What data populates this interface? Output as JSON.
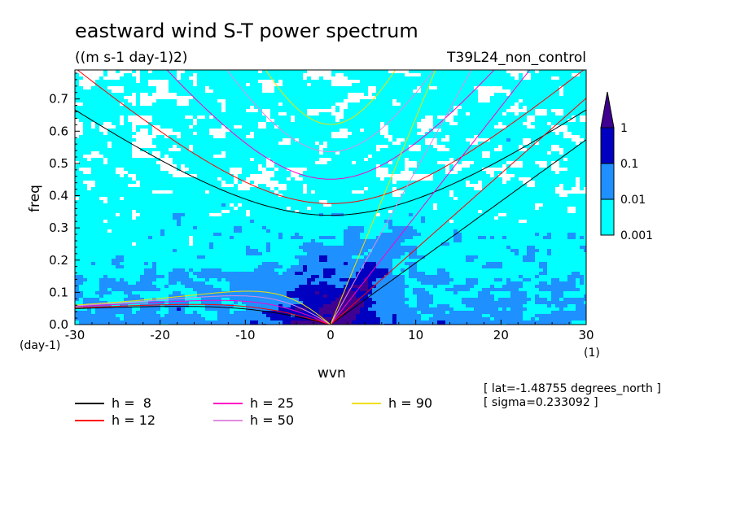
{
  "chart_data": {
    "type": "heatmap",
    "title": "eastward wind S-T power spectrum",
    "subtitle": "((m s-1 day-1)2)",
    "run_label": "T39L24_non_control",
    "xlabel": "wvn",
    "ylabel": "freq",
    "x_unit": "(1)",
    "y_unit": "(day-1)",
    "xlim": [
      -30,
      30
    ],
    "ylim": [
      0,
      0.79
    ],
    "x_ticks": [
      "-30",
      "-20",
      "-10",
      "0",
      "10",
      "20",
      "30"
    ],
    "y_ticks": [
      "0.0",
      "0.1",
      "0.2",
      "0.3",
      "0.4",
      "0.5",
      "0.6",
      "0.7"
    ],
    "colorbar": {
      "levels": [
        "0.001",
        "0.01",
        "0.1",
        "1"
      ],
      "colors": [
        "#00ffff",
        "#1e90ff",
        "#0000c0",
        "#400090"
      ]
    },
    "curves": [
      {
        "label": "h =  8",
        "h": 8,
        "color": "#000000"
      },
      {
        "label": "h = 12",
        "h": 12,
        "color": "#ff0000"
      },
      {
        "label": "h = 25",
        "h": 25,
        "color": "#ff00c8"
      },
      {
        "label": "h = 50",
        "h": 50,
        "color": "#e08ce0"
      },
      {
        "label": "h = 90",
        "h": 90,
        "color": "#f0e000"
      }
    ],
    "annotations": [
      "[ lat=-1.48755 degrees_north ]",
      "[ sigma=0.233092 ]"
    ]
  }
}
